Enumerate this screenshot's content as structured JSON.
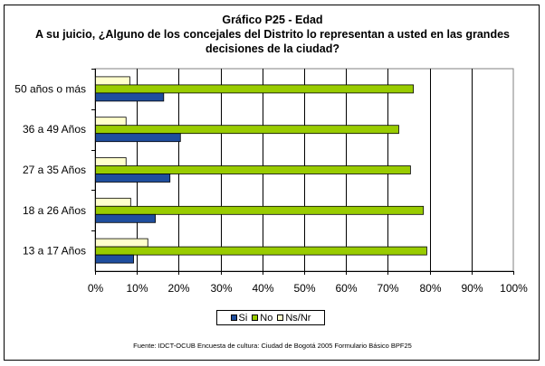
{
  "chart_data": {
    "type": "bar",
    "orientation": "horizontal",
    "title": "Gráfico P25 - Edad",
    "subtitle_lines": [
      "A su juicio, ¿Alguno de los concejales del Distrito lo representan a usted en las grandes",
      "decisiones de la ciudad?"
    ],
    "categories": [
      "50 años o más",
      "36 a 49 Años",
      "27 a 35 Años",
      "18 a 26 Años",
      "13 a 17 Años"
    ],
    "series": [
      {
        "name": "Si",
        "color": "#1f4e9e",
        "values": [
          16.3,
          20.3,
          17.8,
          14.3,
          9.1
        ]
      },
      {
        "name": "No",
        "color": "#99cc00",
        "values": [
          76.0,
          72.5,
          75.3,
          78.4,
          79.2
        ]
      },
      {
        "name": "Ns/Nr",
        "color": "#ffffcc",
        "values": [
          8.2,
          7.3,
          7.3,
          8.4,
          12.5
        ]
      }
    ],
    "xlim": [
      0,
      100
    ],
    "x_ticks": [
      "0%",
      "10%",
      "20%",
      "30%",
      "40%",
      "50%",
      "60%",
      "70%",
      "80%",
      "90%",
      "100%"
    ],
    "grid": true,
    "legend_position": "bottom",
    "source": "Fuente: IDCT-OCUB Encuesta de cultura: Ciudad de Bogotá 2005 Formulario Básico  BPF25"
  }
}
